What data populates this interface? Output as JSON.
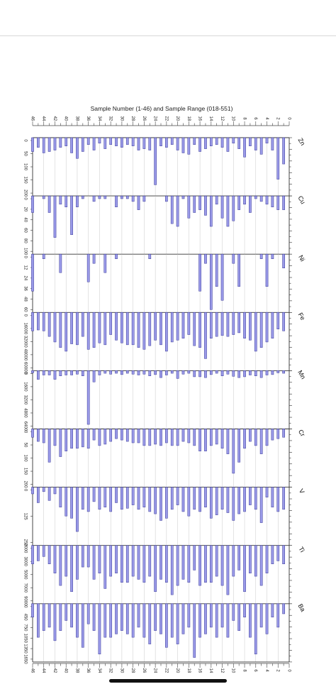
{
  "chart_data": {
    "type": "bar",
    "title": "Sample Number (1-46) and Sample Range (018-551)",
    "x_axis": {
      "min": 0,
      "max": 46,
      "tick_labels": [
        "46",
        "44",
        "42",
        "40",
        "38",
        "36",
        "34",
        "32",
        "30",
        "28",
        "26",
        "24",
        "22",
        "20",
        "18",
        "16",
        "14",
        "12",
        "10",
        "8",
        "6",
        "4",
        "2",
        "0"
      ]
    },
    "panels": [
      {
        "element": "Zn",
        "ylim": [
          0,
          200
        ],
        "tick_labels": [
          "0",
          "50",
          "100",
          "150",
          "200"
        ],
        "values": [
          95,
          150,
          45,
          20,
          60,
          45,
          30,
          70,
          40,
          20,
          50,
          35,
          25,
          30,
          40,
          50,
          25,
          60,
          55,
          45,
          25,
          35,
          30,
          170,
          45,
          40,
          45,
          30,
          25,
          35,
          30,
          25,
          40,
          20,
          45,
          25,
          50,
          75,
          55,
          30,
          35,
          45,
          50,
          55,
          35,
          50
        ]
      },
      {
        "element": "Cu",
        "ylim": [
          0,
          100
        ],
        "tick_labels": [
          "0",
          "20",
          "40",
          "60",
          "80",
          "100"
        ],
        "values": [
          25,
          25,
          20,
          15,
          10,
          5,
          30,
          15,
          25,
          45,
          55,
          40,
          15,
          55,
          35,
          25,
          30,
          40,
          5,
          55,
          50,
          10,
          0,
          0,
          0,
          10,
          25,
          10,
          5,
          5,
          20,
          0,
          5,
          5,
          10,
          0,
          5,
          20,
          70,
          20,
          15,
          75,
          30,
          5,
          0,
          30
        ]
      },
      {
        "element": "Ni",
        "ylim": [
          0,
          60
        ],
        "tick_labels": [
          "0",
          "12",
          "24",
          "36",
          "48",
          "60"
        ],
        "values": [
          15,
          0,
          5,
          35,
          5,
          0,
          0,
          0,
          35,
          10,
          0,
          50,
          35,
          60,
          10,
          40,
          0,
          0,
          0,
          0,
          0,
          0,
          0,
          0,
          5,
          0,
          0,
          0,
          0,
          0,
          5,
          0,
          20,
          0,
          10,
          30,
          0,
          0,
          0,
          0,
          20,
          0,
          0,
          5,
          0,
          40
        ]
      },
      {
        "element": "Fe",
        "ylim": [
          0,
          60000
        ],
        "tick_labels": [
          "0",
          "16000",
          "32000",
          "48000",
          "60000"
        ],
        "values": [
          20000,
          18000,
          28000,
          32000,
          38000,
          42000,
          30000,
          28000,
          22000,
          24000,
          26000,
          25000,
          26000,
          28000,
          50000,
          38000,
          36000,
          24000,
          28000,
          30000,
          32000,
          42000,
          35000,
          30000,
          36000,
          40000,
          38000,
          35000,
          35000,
          33000,
          30000,
          24000,
          35000,
          33000,
          38000,
          40000,
          26000,
          35000,
          34000,
          42000,
          38000,
          32000,
          26000,
          20000,
          19000,
          20000
        ]
      },
      {
        "element": "Mn",
        "ylim": [
          0,
          6400
        ],
        "tick_labels": [
          "0",
          "1600",
          "3200",
          "4800",
          "6400"
        ],
        "values": [
          300,
          250,
          450,
          500,
          800,
          600,
          500,
          700,
          800,
          650,
          400,
          600,
          300,
          450,
          800,
          700,
          700,
          300,
          400,
          900,
          300,
          500,
          800,
          450,
          600,
          400,
          500,
          400,
          300,
          450,
          300,
          400,
          300,
          500,
          1300,
          6200,
          600,
          400,
          500,
          500,
          600,
          1000,
          500,
          500,
          1000,
          250
        ]
      },
      {
        "element": "Cr",
        "ylim": [
          0,
          200
        ],
        "tick_labels": [
          "0",
          "50",
          "100",
          "150",
          "200"
        ],
        "values": [
          30,
          35,
          40,
          60,
          90,
          60,
          45,
          70,
          120,
          160,
          90,
          70,
          55,
          60,
          80,
          80,
          60,
          50,
          45,
          60,
          60,
          50,
          60,
          55,
          60,
          60,
          50,
          50,
          45,
          40,
          35,
          45,
          55,
          60,
          40,
          70,
          65,
          70,
          70,
          80,
          100,
          60,
          120,
          50,
          45,
          30
        ]
      },
      {
        "element": "V",
        "ylim": [
          0,
          250
        ],
        "tick_labels": [
          "0",
          "125",
          "250"
        ],
        "values": [
          100,
          110,
          90,
          45,
          160,
          100,
          80,
          110,
          120,
          150,
          115,
          100,
          125,
          140,
          90,
          110,
          100,
          130,
          110,
          80,
          100,
          140,
          150,
          120,
          110,
          90,
          100,
          80,
          95,
          100,
          70,
          110,
          90,
          100,
          65,
          110,
          100,
          200,
          140,
          130,
          90,
          30,
          60,
          20,
          70,
          30
        ]
      },
      {
        "element": "Ti",
        "ylim": [
          0,
          9000
        ],
        "tick_labels": [
          "2000",
          "3000",
          "5000",
          "7000",
          "9000"
        ],
        "values": [
          3000,
          2500,
          3000,
          4500,
          6500,
          5000,
          4500,
          7500,
          4000,
          5000,
          8000,
          6500,
          5000,
          6000,
          6000,
          6500,
          4000,
          6000,
          5500,
          6500,
          8000,
          6000,
          5500,
          7500,
          5000,
          6000,
          5500,
          5000,
          6000,
          6000,
          4500,
          5000,
          7000,
          4500,
          5500,
          3500,
          3500,
          5500,
          7500,
          5000,
          6500,
          4500,
          3000,
          1800,
          2500,
          3000
        ]
      },
      {
        "element": "Ba",
        "ylim": [
          0,
          1650
        ],
        "tick_labels": [
          "0",
          "450",
          "750",
          "1050",
          "1350",
          "1650"
        ],
        "values": [
          300,
          700,
          400,
          900,
          700,
          1500,
          1000,
          400,
          800,
          500,
          1000,
          700,
          1000,
          700,
          900,
          1000,
          1600,
          700,
          900,
          1200,
          1000,
          1300,
          900,
          800,
          1200,
          1000,
          700,
          1000,
          900,
          800,
          900,
          1000,
          1000,
          1500,
          800,
          600,
          1300,
          1000,
          700,
          500,
          800,
          1100,
          700,
          800,
          1000,
          400
        ]
      }
    ],
    "grid": true,
    "bar_color": "#9a9ae8",
    "bar_stroke": "#3a3a9a"
  }
}
